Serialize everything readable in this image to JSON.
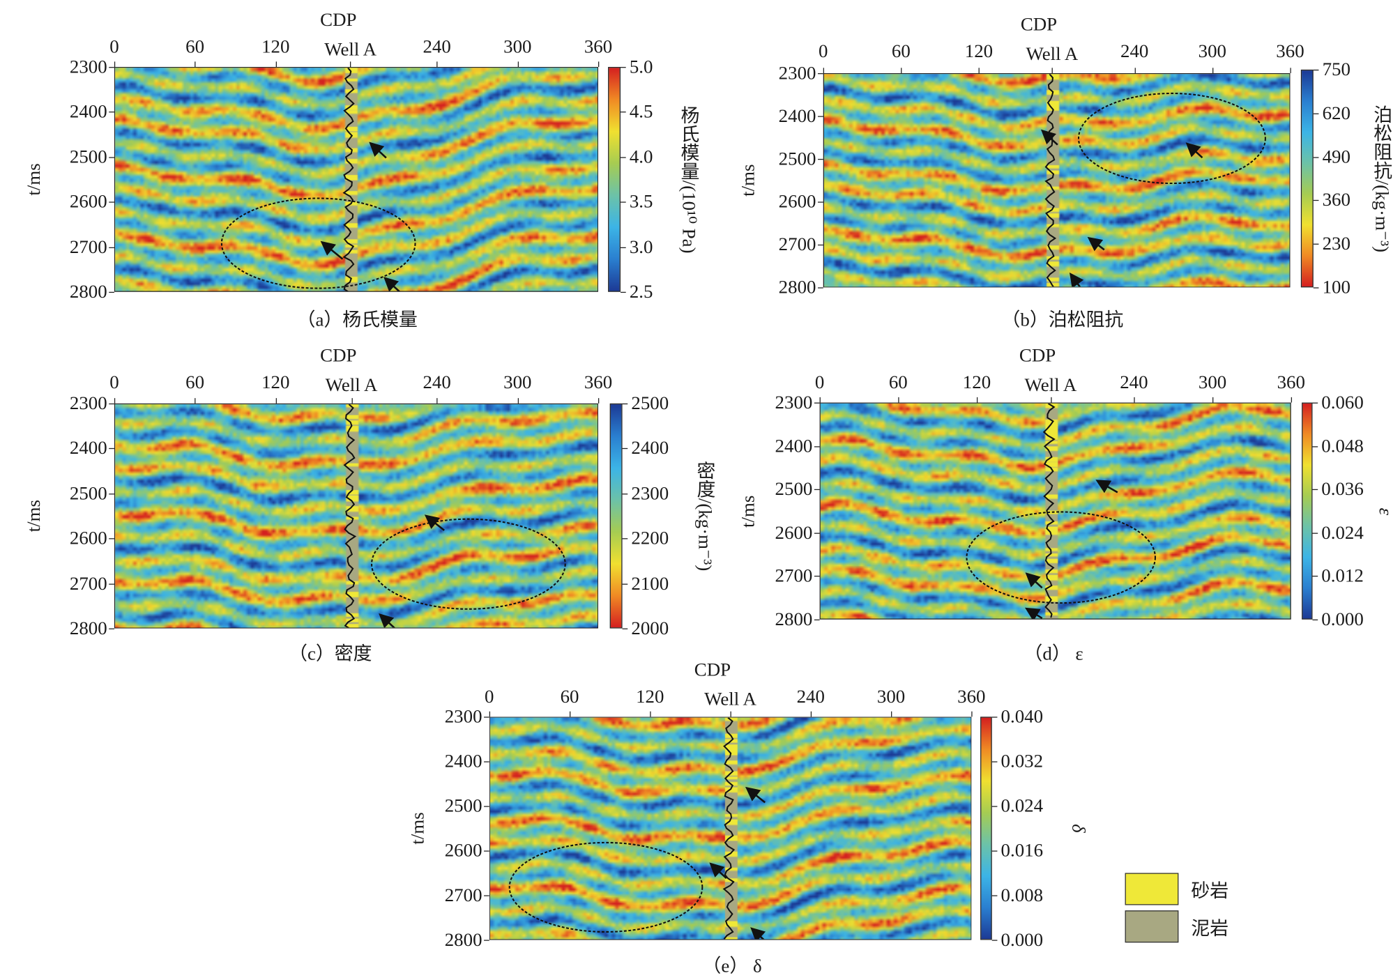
{
  "chart_data": [
    {
      "id": "a",
      "type": "heatmap",
      "xlabel": "CDP",
      "ylabel": "t/ms",
      "x_ticks": [
        "0",
        "60",
        "120",
        "240",
        "300",
        "360"
      ],
      "xlim": [
        0,
        360
      ],
      "well_label": "Well A",
      "y_ticks": [
        "2300",
        "2400",
        "2500",
        "2600",
        "2700",
        "2800"
      ],
      "ylim": [
        2300,
        2800
      ],
      "colorbar": {
        "label": "杨氏模量/(10¹⁰ Pa)",
        "ticks": [
          "5.0",
          "4.5",
          "4.0",
          "3.5",
          "3.0",
          "2.5"
        ],
        "range": [
          2.5,
          5.0
        ],
        "colormap": "jet",
        "high_at_top": true
      },
      "caption": "（a）杨氏模量"
    },
    {
      "id": "b",
      "type": "heatmap",
      "xlabel": "CDP",
      "ylabel": "t/ms",
      "x_ticks": [
        "0",
        "60",
        "120",
        "240",
        "300",
        "360"
      ],
      "xlim": [
        0,
        360
      ],
      "well_label": "Well A",
      "y_ticks": [
        "2300",
        "2400",
        "2500",
        "2600",
        "2700",
        "2800"
      ],
      "ylim": [
        2300,
        2800
      ],
      "colorbar": {
        "label": "泊松阻抗/(kg·m⁻³)",
        "ticks": [
          "750",
          "620",
          "490",
          "360",
          "230",
          "100"
        ],
        "range": [
          100,
          750
        ],
        "colormap": "jet_reversed",
        "high_at_top": true
      },
      "caption": "（b）泊松阻抗"
    },
    {
      "id": "c",
      "type": "heatmap",
      "xlabel": "CDP",
      "ylabel": "t/ms",
      "x_ticks": [
        "0",
        "60",
        "120",
        "240",
        "300",
        "360"
      ],
      "xlim": [
        0,
        360
      ],
      "well_label": "Well A",
      "y_ticks": [
        "2300",
        "2400",
        "2500",
        "2600",
        "2700",
        "2800"
      ],
      "ylim": [
        2300,
        2800
      ],
      "colorbar": {
        "label": "密度/(kg·m⁻³)",
        "ticks": [
          "2500",
          "2400",
          "2300",
          "2200",
          "2100",
          "2000"
        ],
        "range": [
          2000,
          2500
        ],
        "colormap": "jet_reversed",
        "high_at_top": true
      },
      "caption": "（c）密度"
    },
    {
      "id": "d",
      "type": "heatmap",
      "xlabel": "CDP",
      "ylabel": "t/ms",
      "x_ticks": [
        "0",
        "60",
        "120",
        "240",
        "300",
        "360"
      ],
      "xlim": [
        0,
        360
      ],
      "well_label": "Well A",
      "y_ticks": [
        "2300",
        "2400",
        "2500",
        "2600",
        "2700",
        "2800"
      ],
      "ylim": [
        2300,
        2800
      ],
      "colorbar": {
        "label": "ε",
        "ticks": [
          "0.060",
          "0.048",
          "0.036",
          "0.024",
          "0.012",
          "0.000"
        ],
        "range": [
          0,
          0.06
        ],
        "colormap": "jet",
        "high_at_top": true
      },
      "caption": "（d） ε"
    },
    {
      "id": "e",
      "type": "heatmap",
      "xlabel": "CDP",
      "ylabel": "t/ms",
      "x_ticks": [
        "0",
        "60",
        "120",
        "240",
        "300",
        "360"
      ],
      "xlim": [
        0,
        360
      ],
      "well_label": "Well A",
      "y_ticks": [
        "2300",
        "2400",
        "2500",
        "2600",
        "2700",
        "2800"
      ],
      "ylim": [
        2300,
        2800
      ],
      "colorbar": {
        "label": "δ",
        "ticks": [
          "0.040",
          "0.032",
          "0.024",
          "0.016",
          "0.008",
          "0.000"
        ],
        "range": [
          0,
          0.04
        ],
        "colormap": "jet",
        "high_at_top": true
      },
      "caption": "（e） δ"
    }
  ],
  "legend": {
    "items": [
      {
        "label": "砂岩",
        "color": "#efe838"
      },
      {
        "label": "泥岩",
        "color": "#a8a882"
      }
    ]
  },
  "colors": {
    "jet": [
      "#1c3a95",
      "#2a7fd0",
      "#3cb4e6",
      "#6cc2a8",
      "#a6cc52",
      "#f0e030",
      "#f08a24",
      "#d42020"
    ],
    "well_mudstone": "#a8a882",
    "well_sandstone": "#efe838"
  }
}
